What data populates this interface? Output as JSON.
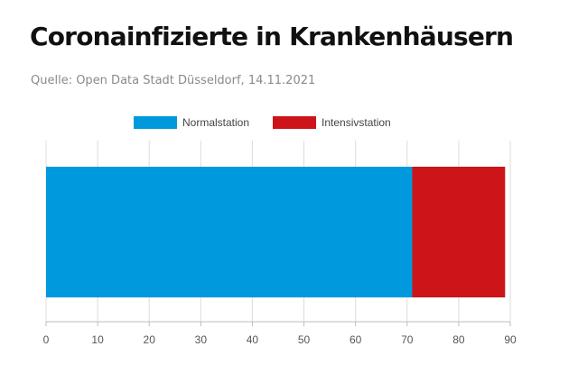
{
  "title": "Coronainfizierte in Krankenhäusern",
  "subtitle": "Quelle: Open Data Stadt Düsseldorf, 14.11.2021",
  "chart_data": {
    "type": "bar",
    "orientation": "horizontal",
    "stacked": true,
    "categories": [
      ""
    ],
    "series": [
      {
        "name": "Normalstation",
        "values": [
          71
        ],
        "color": "#0099dd"
      },
      {
        "name": "Intensivstation",
        "values": [
          18
        ],
        "color": "#cc1419"
      }
    ],
    "xlim": [
      0,
      90
    ],
    "xticks": [
      0,
      10,
      20,
      30,
      40,
      50,
      60,
      70,
      80,
      90
    ],
    "legend_position": "top",
    "grid": true
  }
}
